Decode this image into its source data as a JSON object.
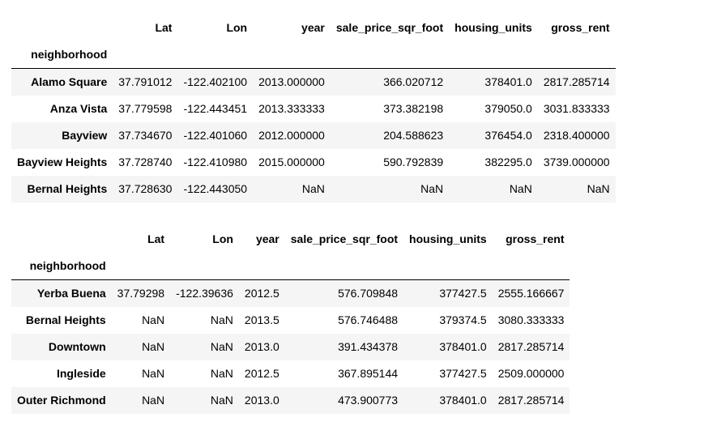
{
  "table1": {
    "columns": [
      "Lat",
      "Lon",
      "year",
      "sale_price_sqr_foot",
      "housing_units",
      "gross_rent"
    ],
    "index_name": "neighborhood",
    "rows": [
      {
        "index": "Alamo Square",
        "values": [
          "37.791012",
          "-122.402100",
          "2013.000000",
          "366.020712",
          "378401.0",
          "2817.285714"
        ]
      },
      {
        "index": "Anza Vista",
        "values": [
          "37.779598",
          "-122.443451",
          "2013.333333",
          "373.382198",
          "379050.0",
          "3031.833333"
        ]
      },
      {
        "index": "Bayview",
        "values": [
          "37.734670",
          "-122.401060",
          "2012.000000",
          "204.588623",
          "376454.0",
          "2318.400000"
        ]
      },
      {
        "index": "Bayview Heights",
        "values": [
          "37.728740",
          "-122.410980",
          "2015.000000",
          "590.792839",
          "382295.0",
          "3739.000000"
        ]
      },
      {
        "index": "Bernal Heights",
        "values": [
          "37.728630",
          "-122.443050",
          "NaN",
          "NaN",
          "NaN",
          "NaN"
        ]
      }
    ]
  },
  "table2": {
    "columns": [
      "Lat",
      "Lon",
      "year",
      "sale_price_sqr_foot",
      "housing_units",
      "gross_rent"
    ],
    "index_name": "neighborhood",
    "rows": [
      {
        "index": "Yerba Buena",
        "values": [
          "37.79298",
          "-122.39636",
          "2012.5",
          "576.709848",
          "377427.5",
          "2555.166667"
        ]
      },
      {
        "index": "Bernal Heights",
        "values": [
          "NaN",
          "NaN",
          "2013.5",
          "576.746488",
          "379374.5",
          "3080.333333"
        ]
      },
      {
        "index": "Downtown",
        "values": [
          "NaN",
          "NaN",
          "2013.0",
          "391.434378",
          "378401.0",
          "2817.285714"
        ]
      },
      {
        "index": "Ingleside",
        "values": [
          "NaN",
          "NaN",
          "2012.5",
          "367.895144",
          "377427.5",
          "2509.000000"
        ]
      },
      {
        "index": "Outer Richmond",
        "values": [
          "NaN",
          "NaN",
          "2013.0",
          "473.900773",
          "378401.0",
          "2817.285714"
        ]
      }
    ]
  }
}
